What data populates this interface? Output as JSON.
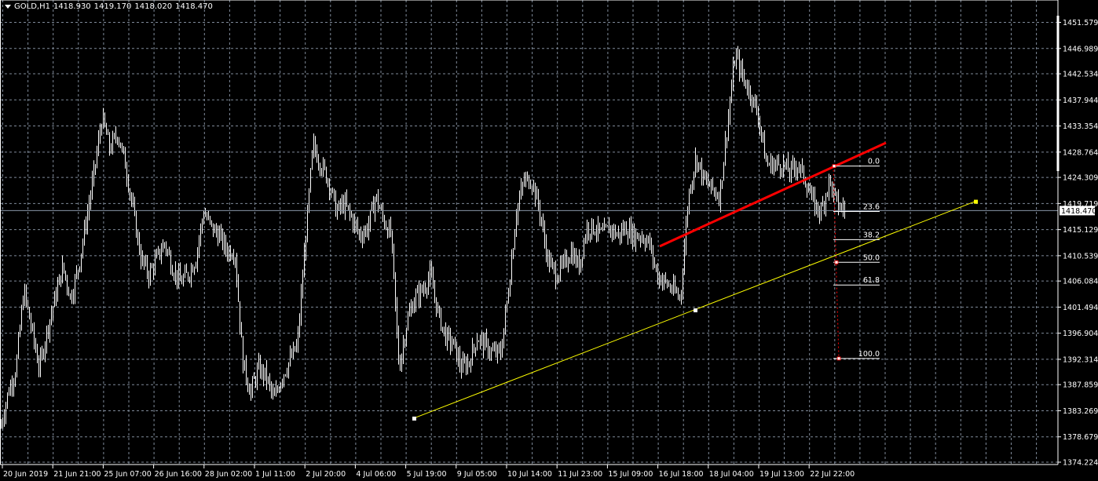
{
  "header": {
    "symbol": "GOLD,H1",
    "open": "1418.930",
    "high": "1419.170",
    "low": "1418.020",
    "close": "1418.470",
    "icon": "triangle-down-icon"
  },
  "colors": {
    "background": "#000000",
    "bars": "#ffffff",
    "grid": "#7f8a99",
    "trendline_red": "#ff0000",
    "trendline_yellow": "#ffff00",
    "fibo_levels": "#ffffff",
    "fibo_trend": "#ff0000",
    "bid_line": "#8894a6"
  },
  "chart_data": {
    "type": "ohlc-bar",
    "symbol": "GOLD",
    "timeframe": "H1",
    "grid": true,
    "ylim": [
      1374.224,
      1451.579
    ],
    "y_ticks": [
      "1451.579",
      "1446.989",
      "1442.534",
      "1437.944",
      "1433.354",
      "1428.764",
      "1424.309",
      "1419.719",
      "1415.129",
      "1410.539",
      "1406.084",
      "1401.494",
      "1396.904",
      "1392.314",
      "1387.859",
      "1383.269",
      "1378.679",
      "1374.224"
    ],
    "x_ticks": [
      "20 Jun 2019",
      "21 Jun 21:00",
      "25 Jun 07:00",
      "26 Jun 16:00",
      "28 Jun 02:00",
      "1 Jul 11:00",
      "2 Jul 20:00",
      "4 Jul 06:00",
      "5 Jul 19:00",
      "9 Jul 05:00",
      "10 Jul 14:00",
      "11 Jul 23:00",
      "15 Jul 09:00",
      "16 Jul 18:00",
      "18 Jul 04:00",
      "19 Jul 13:00",
      "22 Jul 22:00"
    ],
    "current_price": "1418.470",
    "approx_close_path": [
      1380.3,
      1386.5,
      1390.7,
      1404.5,
      1397.6,
      1390.7,
      1397.6,
      1403.1,
      1408.6,
      1403.1,
      1408.6,
      1416.9,
      1425.2,
      1434.9,
      1429.3,
      1432.1,
      1426.6,
      1418.3,
      1410.0,
      1407.2,
      1410.0,
      1412.8,
      1408.6,
      1405.9,
      1407.2,
      1410.0,
      1418.3,
      1415.5,
      1414.1,
      1411.4,
      1411.4,
      1392.0,
      1386.5,
      1390.7,
      1389.3,
      1385.1,
      1389.3,
      1392.0,
      1394.8,
      1412.8,
      1430.0,
      1426.6,
      1423.8,
      1418.3,
      1419.7,
      1417.0,
      1414.1,
      1415.5,
      1421.0,
      1416.9,
      1414.1,
      1390.7,
      1398.9,
      1403.1,
      1404.5,
      1407.2,
      1400.3,
      1396.2,
      1394.8,
      1390.7,
      1392.0,
      1396.2,
      1394.8,
      1393.4,
      1393.4,
      1404.5,
      1418.3,
      1423.8,
      1423.8,
      1418.3,
      1410.0,
      1407.2,
      1408.6,
      1411.4,
      1408.6,
      1415.5,
      1415.5,
      1414.1,
      1415.5,
      1414.1,
      1415.5,
      1414.1,
      1414.1,
      1412.8,
      1407.2,
      1405.9,
      1404.5,
      1403.1,
      1421.0,
      1428.0,
      1423.8,
      1422.4,
      1421.0,
      1433.5,
      1446.0,
      1441.8,
      1439.0,
      1434.9,
      1426.6,
      1426.6,
      1426.6,
      1425.2,
      1426.6,
      1423.8,
      1419.7,
      1418.3,
      1423.8,
      1419.7,
      1418.47
    ],
    "objects": {
      "red_trendline": {
        "price_start": 1412.2,
        "price_end": 1430.4
      },
      "yellow_trendline": {
        "price_start": 1381.96,
        "price_mid": 1401.0,
        "price_end": 1420.1
      },
      "fibonacci": {
        "price_0": 1426.3,
        "price_100": 1392.46,
        "levels": [
          "0.0",
          "23.6",
          "38.2",
          "50.0",
          "61.8",
          "100.0"
        ]
      }
    }
  }
}
